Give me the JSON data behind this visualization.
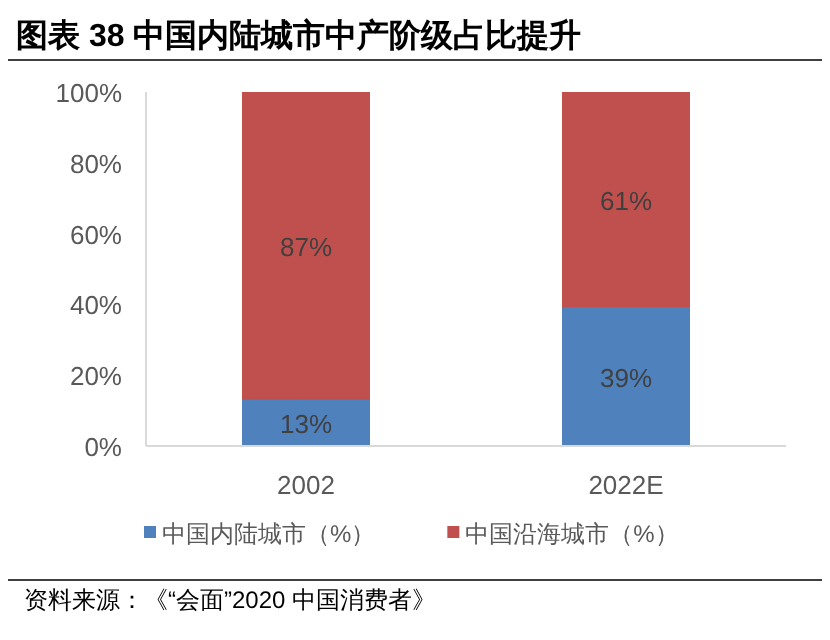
{
  "chart_data": {
    "type": "bar",
    "title": "图表 38 中国内陆城市中产阶级占比提升",
    "categories": [
      "2002",
      "2022E"
    ],
    "stacked": true,
    "series": [
      {
        "name": "中国内陆城市（%）",
        "color": "#4f81bd",
        "values": [
          13,
          39
        ],
        "value_labels": [
          "13%",
          "39%"
        ]
      },
      {
        "name": "中国沿海城市（%）",
        "color": "#c0504d",
        "values": [
          87,
          61
        ],
        "value_labels": [
          "87%",
          "61%"
        ]
      }
    ],
    "ylim": [
      0,
      100
    ],
    "yticks": [
      {
        "value": 0,
        "label": "0%"
      },
      {
        "value": 20,
        "label": "20%"
      },
      {
        "value": 40,
        "label": "40%"
      },
      {
        "value": 60,
        "label": "60%"
      },
      {
        "value": 80,
        "label": "80%"
      },
      {
        "value": 100,
        "label": "100%"
      }
    ],
    "grid": false,
    "legend": "bottom",
    "annotations": [
      "资料来源：《“会面”2020 中国消费者》"
    ]
  }
}
